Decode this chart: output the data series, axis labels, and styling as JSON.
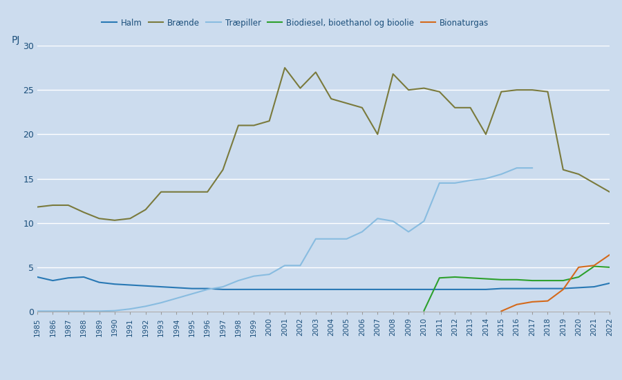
{
  "years": [
    1985,
    1986,
    1987,
    1988,
    1989,
    1990,
    1991,
    1992,
    1993,
    1994,
    1995,
    1996,
    1997,
    1998,
    1999,
    2000,
    2001,
    2002,
    2003,
    2004,
    2005,
    2006,
    2007,
    2008,
    2009,
    2010,
    2011,
    2012,
    2013,
    2014,
    2015,
    2016,
    2017,
    2018,
    2019,
    2020,
    2021,
    2022
  ],
  "halm": [
    3.9,
    3.5,
    3.8,
    3.9,
    3.3,
    3.1,
    3.0,
    2.9,
    2.8,
    2.7,
    2.6,
    2.6,
    2.5,
    2.5,
    2.5,
    2.5,
    2.5,
    2.5,
    2.5,
    2.5,
    2.5,
    2.5,
    2.5,
    2.5,
    2.5,
    2.5,
    2.5,
    2.5,
    2.5,
    2.5,
    2.6,
    2.6,
    2.6,
    2.6,
    2.6,
    2.7,
    2.8,
    3.2
  ],
  "braende": [
    11.8,
    12.0,
    12.0,
    11.2,
    10.5,
    10.3,
    10.5,
    11.5,
    13.5,
    13.5,
    13.5,
    13.5,
    16.0,
    21.0,
    21.0,
    21.5,
    27.5,
    25.2,
    27.0,
    24.0,
    23.5,
    23.0,
    20.0,
    26.8,
    25.0,
    25.2,
    24.8,
    23.0,
    23.0,
    20.0,
    24.8,
    25.0,
    25.0,
    24.8,
    16.0,
    15.5,
    14.5,
    13.5
  ],
  "traepiller": [
    0.05,
    0.05,
    0.05,
    0.05,
    0.05,
    0.1,
    0.3,
    0.6,
    1.0,
    1.5,
    2.0,
    2.5,
    2.8,
    3.5,
    4.0,
    4.2,
    5.2,
    5.2,
    8.2,
    8.2,
    8.2,
    9.0,
    10.5,
    10.2,
    9.0,
    10.2,
    14.5,
    14.5,
    14.8,
    15.0,
    15.5,
    16.2,
    16.2,
    null,
    null,
    null,
    null,
    null
  ],
  "biodiesel": [
    null,
    null,
    null,
    null,
    null,
    null,
    null,
    null,
    null,
    null,
    null,
    null,
    null,
    null,
    null,
    null,
    null,
    null,
    null,
    null,
    null,
    null,
    null,
    null,
    null,
    0.1,
    3.8,
    3.9,
    3.8,
    3.7,
    3.6,
    3.6,
    3.5,
    3.5,
    3.5,
    3.9,
    5.1,
    5.0
  ],
  "bionaturgas": [
    null,
    null,
    null,
    null,
    null,
    null,
    null,
    null,
    null,
    null,
    null,
    null,
    null,
    null,
    null,
    null,
    null,
    null,
    null,
    null,
    null,
    null,
    null,
    null,
    null,
    null,
    null,
    null,
    null,
    null,
    0.05,
    0.8,
    1.1,
    1.2,
    2.5,
    5.0,
    5.2,
    6.4
  ],
  "halm_color": "#2878b4",
  "braende_color": "#7a7a3c",
  "traepiller_color": "#88bce0",
  "biodiesel_color": "#2ca02c",
  "bionaturgas_color": "#d4691a",
  "bg_color": "#ccdcee",
  "grid_color": "#ffffff",
  "ylim": [
    0,
    30
  ],
  "yticks": [
    0,
    5,
    10,
    15,
    20,
    25,
    30
  ],
  "ylabel": "PJ"
}
